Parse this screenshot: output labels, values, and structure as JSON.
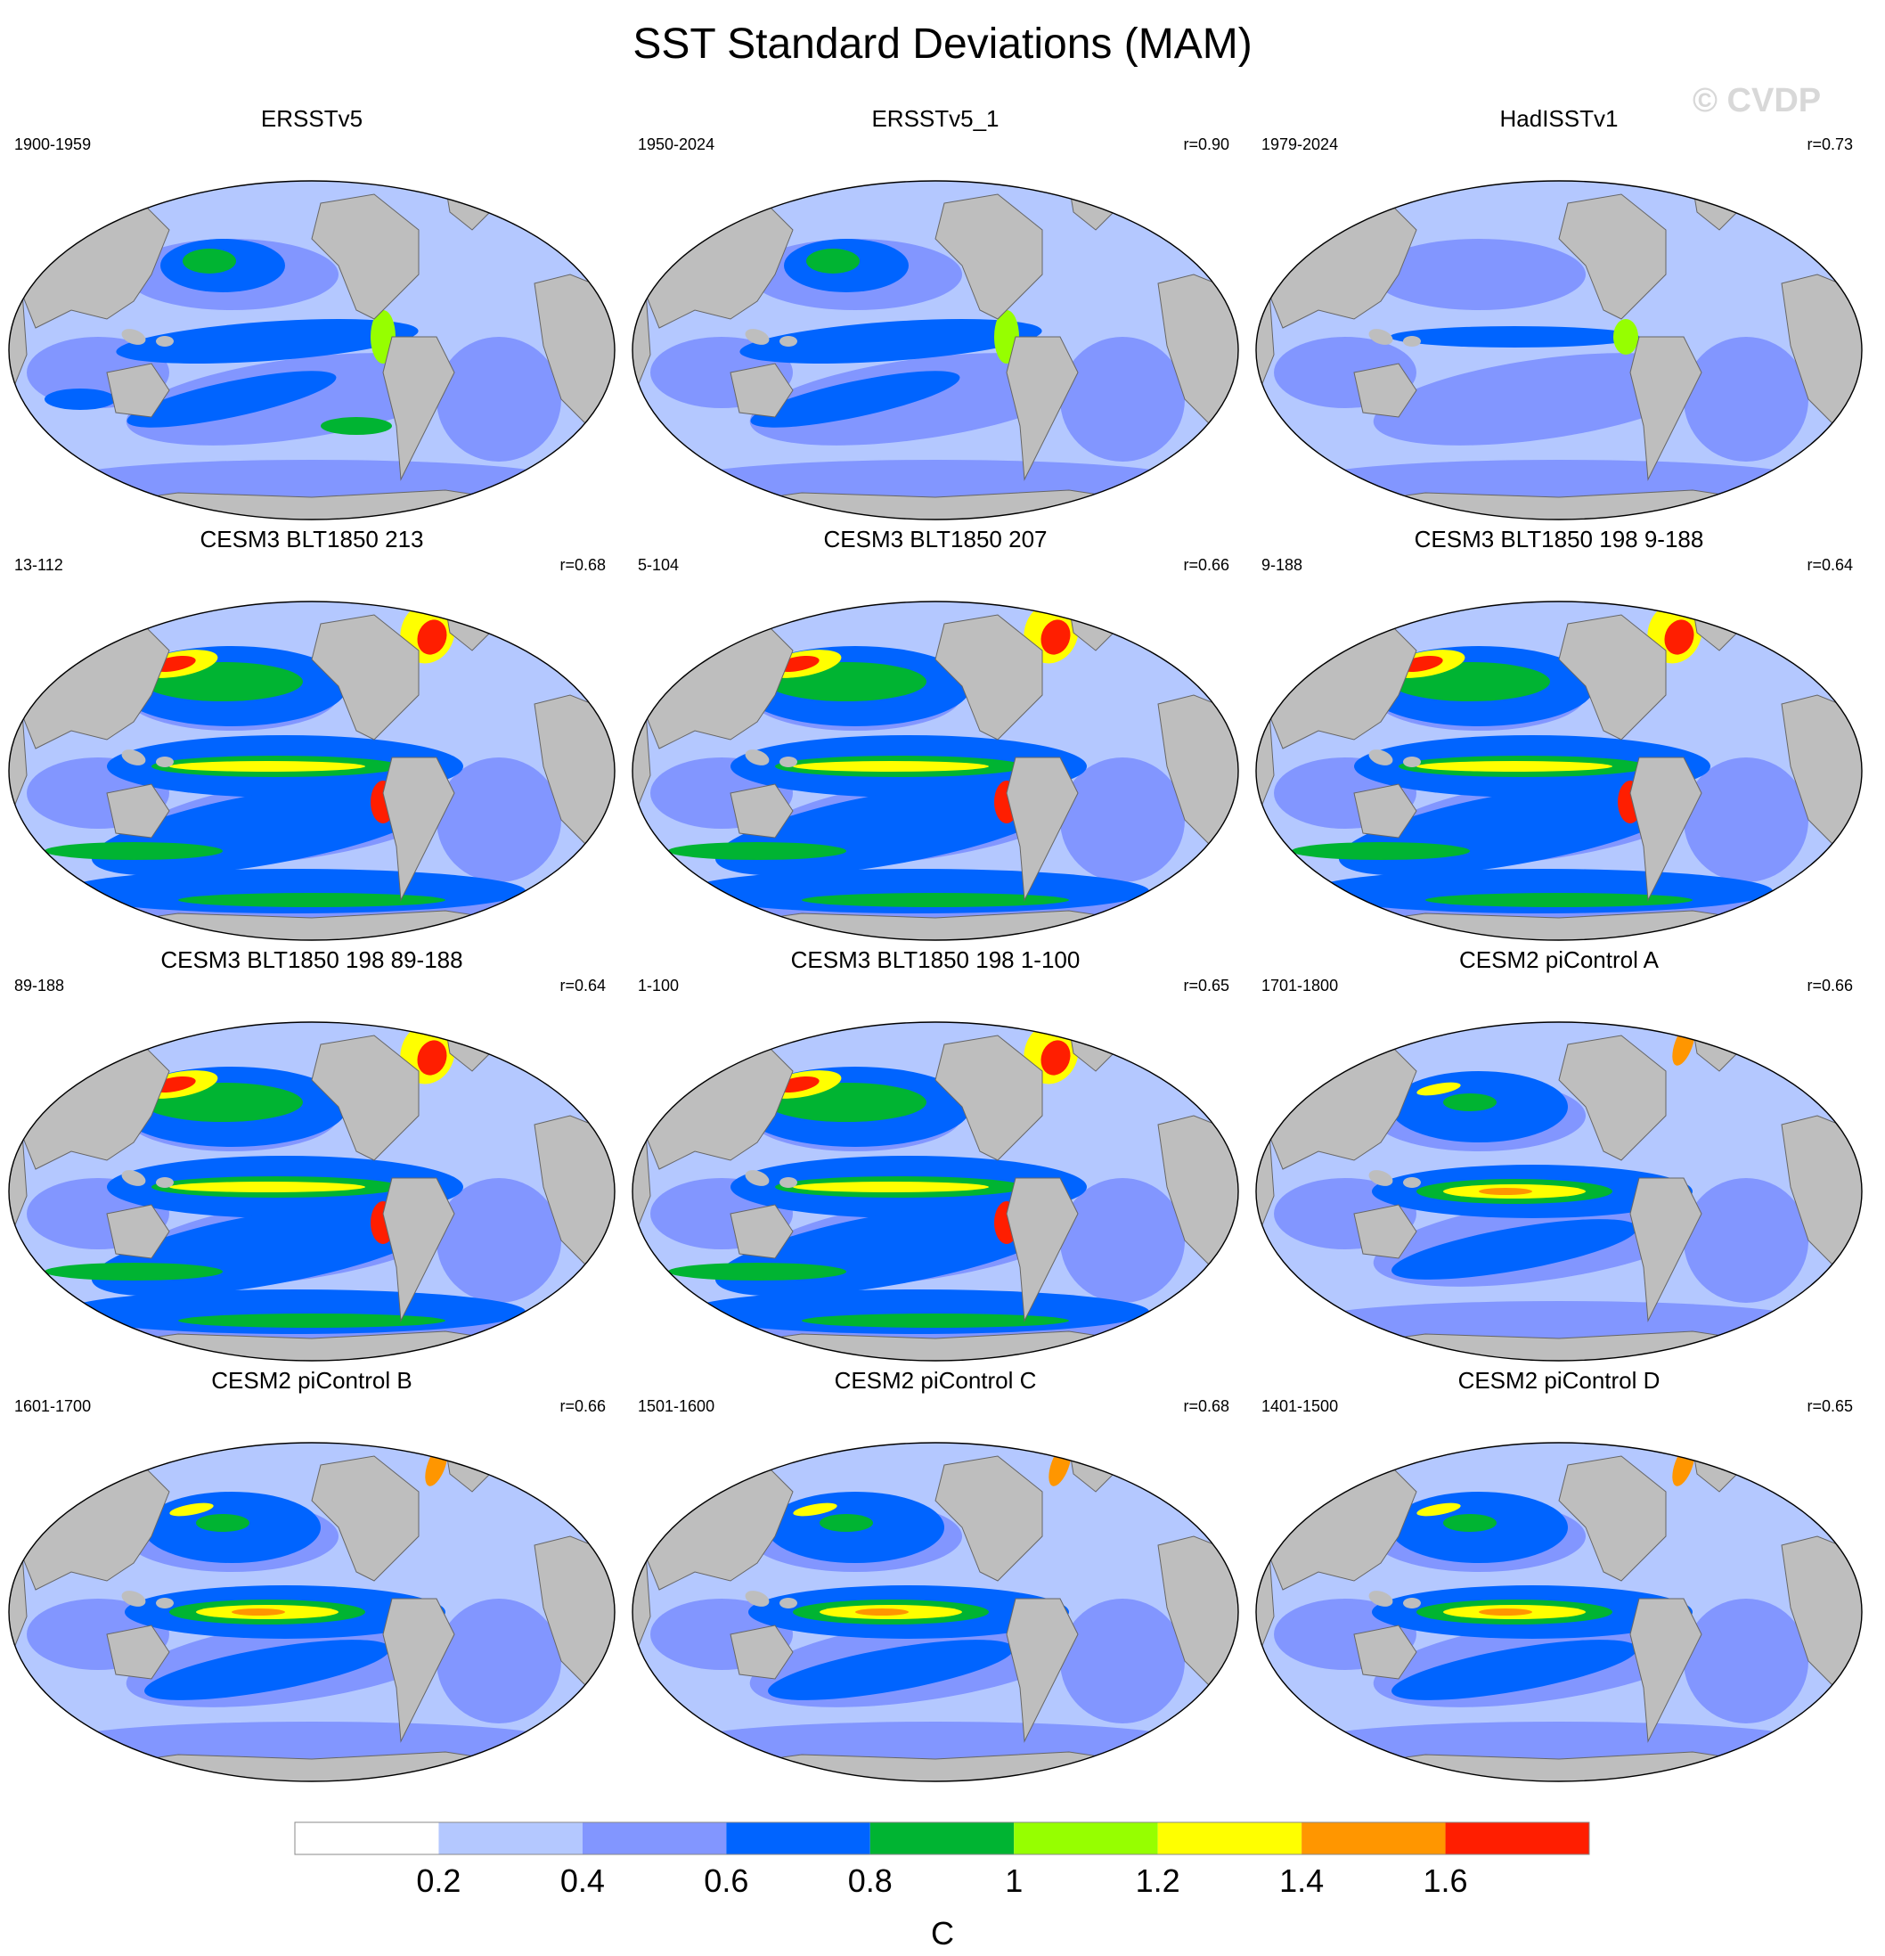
{
  "title": "SST Standard Deviations (MAM)",
  "watermark": "© CVDP",
  "panels": [
    {
      "title": "ERSSTv5",
      "period": "1900-1959",
      "r": ""
    },
    {
      "title": "ERSSTv5_1",
      "period": "1950-2024",
      "r": "r=0.90"
    },
    {
      "title": "HadISSTv1",
      "period": "1979-2024",
      "r": "r=0.73"
    },
    {
      "title": "CESM3 BLT1850 213",
      "period": "13-112",
      "r": "r=0.68"
    },
    {
      "title": "CESM3 BLT1850 207",
      "period": "5-104",
      "r": "r=0.66"
    },
    {
      "title": "CESM3 BLT1850 198 9-188",
      "period": "9-188",
      "r": "r=0.64"
    },
    {
      "title": "CESM3 BLT1850 198 89-188",
      "period": "89-188",
      "r": "r=0.64"
    },
    {
      "title": "CESM3 BLT1850 198 1-100",
      "period": "1-100",
      "r": "r=0.65"
    },
    {
      "title": "CESM2 piControl A",
      "period": "1701-1800",
      "r": "r=0.66"
    },
    {
      "title": "CESM2 piControl B",
      "period": "1601-1700",
      "r": "r=0.66"
    },
    {
      "title": "CESM2 piControl C",
      "period": "1501-1600",
      "r": "r=0.68"
    },
    {
      "title": "CESM2 piControl D",
      "period": "1401-1500",
      "r": "r=0.65"
    }
  ],
  "colorbar": {
    "unit": "C",
    "tick_labels": [
      "0.2",
      "0.4",
      "0.6",
      "0.8",
      "1",
      "1.2",
      "1.4",
      "1.6"
    ],
    "colors": [
      "#ffffff",
      "#b4c8ff",
      "#8296ff",
      "#0064ff",
      "#00b432",
      "#96ff00",
      "#ffff00",
      "#ff9600",
      "#ff1e00"
    ]
  },
  "map_colors": {
    "land": "#bebebe",
    "ocean_base": "#b4c8ff",
    "low": "#8296ff",
    "mid": "#0064ff",
    "green": "#00b432",
    "lime": "#96ff00",
    "yellow": "#ffff00",
    "orange": "#ff9600",
    "red": "#ff1e00",
    "ice": "#ffffff"
  }
}
